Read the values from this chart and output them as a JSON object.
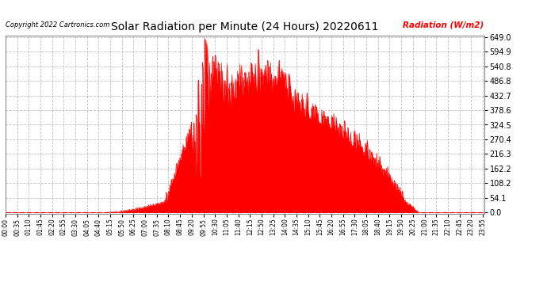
{
  "title": "Solar Radiation per Minute (24 Hours) 20220611",
  "copyright_text": "Copyright 2022 Cartronics.com",
  "ylabel_text": "Radiation (W/m2)",
  "ylabel_color": "#ff0000",
  "fill_color": "#ff0000",
  "line_color": "#ff0000",
  "background_color": "#ffffff",
  "grid_color": "#b0b0b0",
  "yticks": [
    0.0,
    54.1,
    108.2,
    162.2,
    216.3,
    270.4,
    324.5,
    378.6,
    432.7,
    486.8,
    540.8,
    594.9,
    649.0
  ],
  "ymin": 0.0,
  "ymax": 649.0,
  "total_minutes": 1440,
  "x_tick_interval_minutes": 35,
  "x_tick_labels": [
    "00:00",
    "00:35",
    "01:10",
    "01:45",
    "02:20",
    "02:55",
    "03:30",
    "04:05",
    "04:40",
    "05:15",
    "05:50",
    "06:25",
    "07:00",
    "07:35",
    "08:10",
    "08:45",
    "09:20",
    "09:55",
    "10:30",
    "11:05",
    "11:40",
    "12:15",
    "12:50",
    "13:25",
    "14:00",
    "14:35",
    "15:10",
    "15:45",
    "16:20",
    "16:55",
    "17:30",
    "18:05",
    "18:40",
    "19:15",
    "19:50",
    "20:25",
    "21:00",
    "21:35",
    "22:10",
    "22:45",
    "23:20",
    "23:55"
  ]
}
